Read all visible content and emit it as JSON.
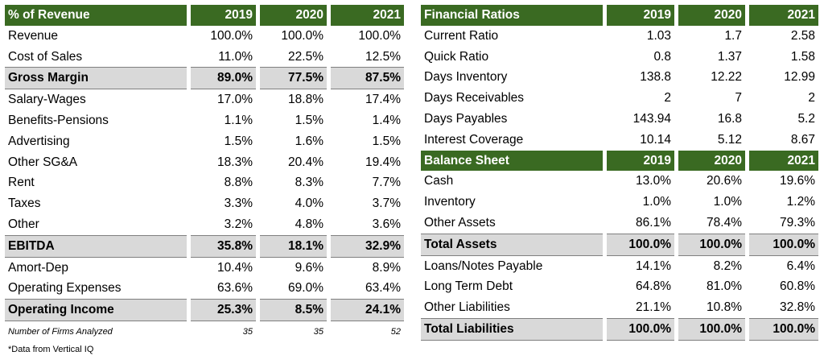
{
  "revenue_table": {
    "header": {
      "label": "% of Revenue",
      "y1": "2019",
      "y2": "2020",
      "y3": "2021"
    },
    "rows": [
      {
        "label": "Revenue",
        "v1": "100.0%",
        "v2": "100.0%",
        "v3": "100.0%",
        "bold": false
      },
      {
        "label": "Cost of Sales",
        "v1": "11.0%",
        "v2": "22.5%",
        "v3": "12.5%",
        "bold": false
      },
      {
        "label": "Gross Margin",
        "v1": "89.0%",
        "v2": "77.5%",
        "v3": "87.5%",
        "bold": true
      },
      {
        "label": "Salary-Wages",
        "v1": "17.0%",
        "v2": "18.8%",
        "v3": "17.4%",
        "bold": false
      },
      {
        "label": "Benefits-Pensions",
        "v1": "1.1%",
        "v2": "1.5%",
        "v3": "1.4%",
        "bold": false
      },
      {
        "label": "Advertising",
        "v1": "1.5%",
        "v2": "1.6%",
        "v3": "1.5%",
        "bold": false
      },
      {
        "label": "Other SG&A",
        "v1": "18.3%",
        "v2": "20.4%",
        "v3": "19.4%",
        "bold": false
      },
      {
        "label": "Rent",
        "v1": "8.8%",
        "v2": "8.3%",
        "v3": "7.7%",
        "bold": false
      },
      {
        "label": "Taxes",
        "v1": "3.3%",
        "v2": "4.0%",
        "v3": "3.7%",
        "bold": false
      },
      {
        "label": "Other",
        "v1": "3.2%",
        "v2": "4.8%",
        "v3": "3.6%",
        "bold": false
      },
      {
        "label": "EBITDA",
        "v1": "35.8%",
        "v2": "18.1%",
        "v3": "32.9%",
        "bold": true
      },
      {
        "label": "Amort-Dep",
        "v1": "10.4%",
        "v2": "9.6%",
        "v3": "8.9%",
        "bold": false
      },
      {
        "label": "Operating Expenses",
        "v1": "63.6%",
        "v2": "69.0%",
        "v3": "63.4%",
        "bold": false
      },
      {
        "label": "Operating Income",
        "v1": "25.3%",
        "v2": "8.5%",
        "v3": "24.1%",
        "bold": true
      }
    ],
    "firms_note": {
      "label": "Number of Firms Analyzed",
      "v1": "35",
      "v2": "35",
      "v3": "52"
    }
  },
  "ratios_table": {
    "header": {
      "label": "Financial Ratios",
      "y1": "2019",
      "y2": "2020",
      "y3": "2021"
    },
    "rows": [
      {
        "label": "Current Ratio",
        "v1": "1.03",
        "v2": "1.7",
        "v3": "2.58"
      },
      {
        "label": "Quick Ratio",
        "v1": "0.8",
        "v2": "1.37",
        "v3": "1.58"
      },
      {
        "label": "Days Inventory",
        "v1": "138.8",
        "v2": "12.22",
        "v3": "12.99"
      },
      {
        "label": "Days Receivables",
        "v1": "2",
        "v2": "7",
        "v3": "2"
      },
      {
        "label": "Days Payables",
        "v1": "143.94",
        "v2": "16.8",
        "v3": "5.2"
      },
      {
        "label": "Interest Coverage",
        "v1": "10.14",
        "v2": "5.12",
        "v3": "8.67"
      }
    ]
  },
  "balance_table": {
    "header": {
      "label": "Balance Sheet",
      "y1": "2019",
      "y2": "2020",
      "y3": "2021"
    },
    "rows": [
      {
        "label": "Cash",
        "v1": "13.0%",
        "v2": "20.6%",
        "v3": "19.6%",
        "bold": false
      },
      {
        "label": "Inventory",
        "v1": "1.0%",
        "v2": "1.0%",
        "v3": "1.2%",
        "bold": false
      },
      {
        "label": "Other Assets",
        "v1": "86.1%",
        "v2": "78.4%",
        "v3": "79.3%",
        "bold": false
      },
      {
        "label": "Total Assets",
        "v1": "100.0%",
        "v2": "100.0%",
        "v3": "100.0%",
        "bold": true
      },
      {
        "label": "Loans/Notes Payable",
        "v1": "14.1%",
        "v2": "8.2%",
        "v3": "6.4%",
        "bold": false
      },
      {
        "label": "Long Term Debt",
        "v1": "64.8%",
        "v2": "81.0%",
        "v3": "60.8%",
        "bold": false
      },
      {
        "label": "Other Liabilities",
        "v1": "21.1%",
        "v2": "10.8%",
        "v3": "32.8%",
        "bold": false
      },
      {
        "label": "Total Liabilities",
        "v1": "100.0%",
        "v2": "100.0%",
        "v3": "100.0%",
        "bold": true
      }
    ]
  },
  "footnote": "*Data from Vertical IQ",
  "colors": {
    "header_bg": "#3a6a22",
    "header_text": "#ffffff",
    "bold_row_bg": "#d9d9d9"
  }
}
